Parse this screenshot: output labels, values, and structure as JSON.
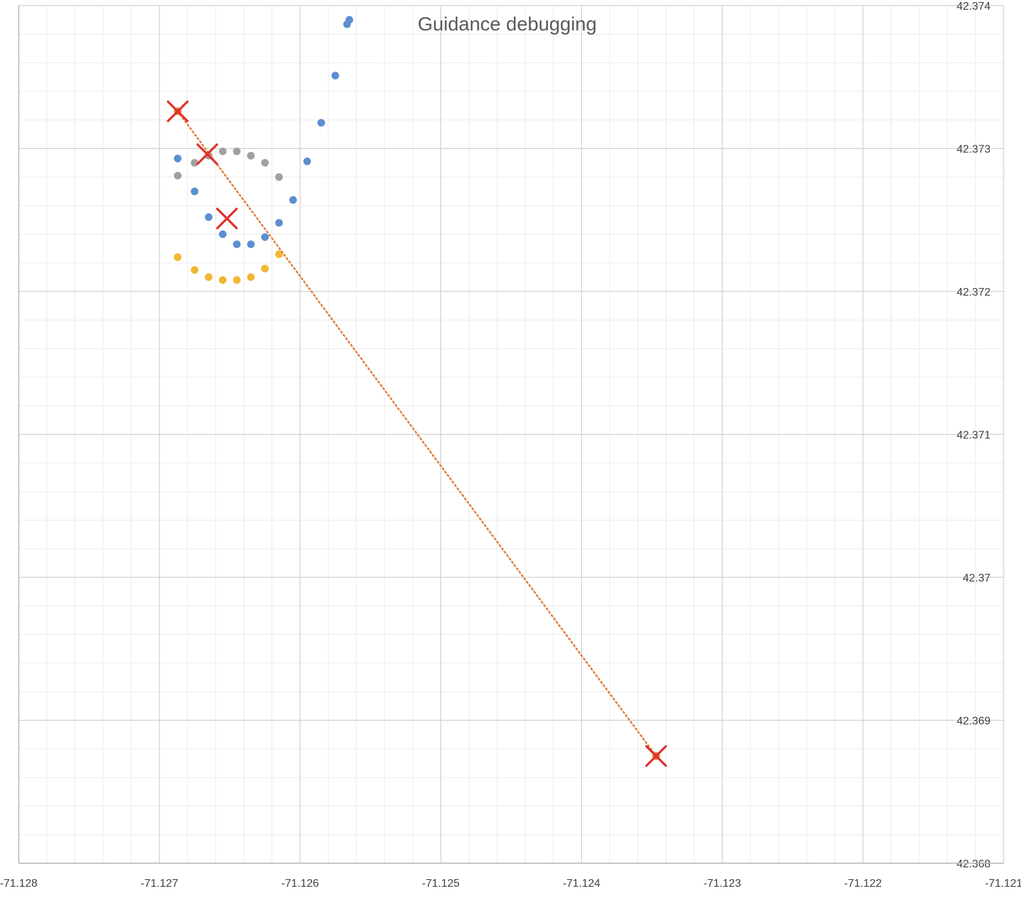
{
  "chart_data": {
    "type": "scatter",
    "title": "Guidance debugging",
    "xlim": [
      -71.128,
      -71.121
    ],
    "ylim": [
      42.368,
      42.374
    ],
    "x_tick_labels": [
      "-71.128",
      "-71.127",
      "-71.126",
      "-71.125",
      "-71.124",
      "-71.123",
      "-71.122",
      "-71.121"
    ],
    "y_tick_labels": [
      "42.374",
      "42.373",
      "42.372",
      "42.371",
      "42.37",
      "42.369",
      "42.368"
    ],
    "grid": true,
    "legend": "top-center",
    "colors": {
      "blue": "#5B8FCF",
      "gray": "#A0A0A0",
      "yellow": "#F2B731",
      "orange_line": "#E07B39",
      "red_x": "#E0302A",
      "major_grid": "#D0D0D0",
      "minor_grid": "#EBEBEB"
    },
    "series": [
      {
        "color": "#5B8FCF",
        "style": "markers",
        "points": [
          [
            -71.12565,
            42.3739
          ],
          [
            -71.12575,
            42.37351
          ],
          [
            -71.12585,
            42.37318
          ],
          [
            -71.12595,
            42.37291
          ],
          [
            -71.12605,
            42.37264
          ],
          [
            -71.12615,
            42.37248
          ],
          [
            -71.12625,
            42.37238
          ],
          [
            -71.12635,
            42.37233
          ],
          [
            -71.12645,
            42.37233
          ],
          [
            -71.12655,
            42.3724
          ],
          [
            -71.12665,
            42.37252
          ],
          [
            -71.12675,
            42.3727
          ],
          [
            -71.12687,
            42.37293
          ]
        ]
      },
      {
        "color": "#A0A0A0",
        "style": "markers",
        "points": [
          [
            -71.12615,
            42.3728
          ],
          [
            -71.12625,
            42.3729
          ],
          [
            -71.12635,
            42.37295
          ],
          [
            -71.12645,
            42.37298
          ],
          [
            -71.12655,
            42.37298
          ],
          [
            -71.12665,
            42.37295
          ],
          [
            -71.12675,
            42.3729
          ],
          [
            -71.12687,
            42.37281
          ]
        ]
      },
      {
        "color": "#F2B731",
        "style": "markers",
        "points": [
          [
            -71.12615,
            42.37226
          ],
          [
            -71.12625,
            42.37216
          ],
          [
            -71.12635,
            42.3721
          ],
          [
            -71.12645,
            42.37208
          ],
          [
            -71.12655,
            42.37208
          ],
          [
            -71.12665,
            42.3721
          ],
          [
            -71.12675,
            42.37215
          ],
          [
            -71.12687,
            42.37224
          ]
        ]
      },
      {
        "color": "#E07B39",
        "style": "dotted-line",
        "points": [
          [
            -71.12687,
            42.37326
          ],
          [
            -71.12347,
            42.36875
          ]
        ]
      },
      {
        "color": "#E0302A",
        "style": "x-markers",
        "points": [
          [
            -71.12687,
            42.37326
          ],
          [
            -71.12666,
            42.37296
          ],
          [
            -71.12652,
            42.37251
          ],
          [
            -71.12347,
            42.36875
          ]
        ]
      }
    ]
  }
}
